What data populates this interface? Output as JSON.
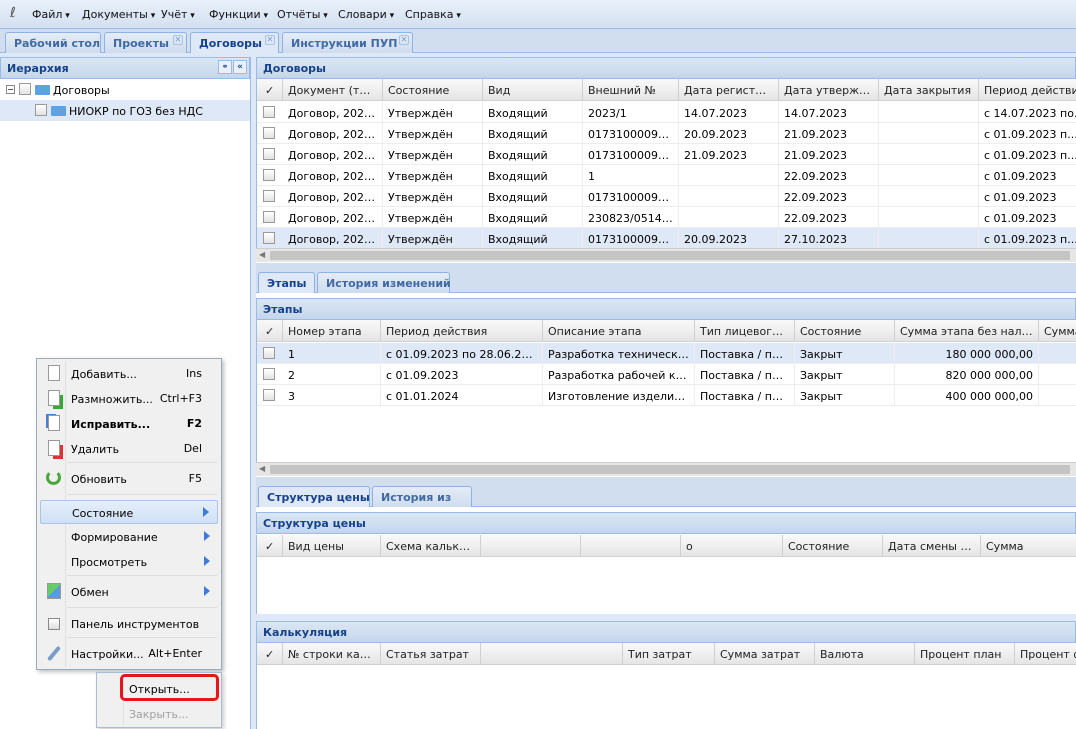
{
  "menubar": {
    "items": [
      "Файл",
      "Документы",
      "Учёт",
      "Функции",
      "Отчёты",
      "Словари",
      "Справка"
    ]
  },
  "tabs": [
    {
      "label": "Рабочий стол",
      "closable": false
    },
    {
      "label": "Проекты",
      "closable": true
    },
    {
      "label": "Договоры",
      "closable": true,
      "active": true
    },
    {
      "label": "Инструкции ПУП",
      "closable": true
    }
  ],
  "hierarchy": {
    "title": "Иерархия",
    "nodes": [
      {
        "label": "Договоры",
        "expanded": true
      },
      {
        "label": "НИОКР по ГОЗ без НДС"
      }
    ]
  },
  "contracts": {
    "title": "Договоры",
    "columns": [
      "Документ (тип, №",
      "Состояние",
      "Вид",
      "Внешний №",
      "Дата регистрации...",
      "Дата утверждения",
      "Дата закрытия",
      "Период действия..."
    ],
    "rows": [
      [
        "Договор, 2023/...",
        "Утверждён",
        "Входящий",
        "2023/1",
        "14.07.2023",
        "14.07.2023",
        "",
        "с 14.07.2023 по..."
      ],
      [
        "Договор, 2023/...",
        "Утверждён",
        "Входящий",
        "017310000922...",
        "20.09.2023",
        "21.09.2023",
        "",
        "с 01.09.2023 п..."
      ],
      [
        "Договор, 2023/...",
        "Утверждён",
        "Входящий",
        "017310000922...",
        "21.09.2023",
        "21.09.2023",
        "",
        "с 01.09.2023 п..."
      ],
      [
        "Договор, 2023/...",
        "Утверждён",
        "Входящий",
        "1",
        "",
        "22.09.2023",
        "",
        "с 01.09.2023"
      ],
      [
        "Договор, 2023/...",
        "Утверждён",
        "Входящий",
        "017310000922...",
        "",
        "22.09.2023",
        "",
        "с 01.09.2023"
      ],
      [
        "Договор, 2023/...",
        "Утверждён",
        "Входящий",
        "230823/0514/...",
        "",
        "22.09.2023",
        "",
        "с 01.09.2023"
      ],
      [
        "Договор, 2023/...",
        "Утверждён",
        "Входящий",
        "017310000922...",
        "20.09.2023",
        "27.10.2023",
        "",
        "с 01.09.2023 п..."
      ]
    ],
    "selected_row": 6
  },
  "stage_tabs": [
    "Этапы",
    "История изменений"
  ],
  "stages": {
    "title": "Этапы",
    "columns": [
      "Номер этапа",
      "Период действия",
      "Описание этапа",
      "Тип лицевого счёт",
      "Состояние",
      "Сумма этапа без налогов",
      "Сумма"
    ],
    "rows": [
      [
        "1",
        "с 01.09.2023 по 28.06.2024",
        "Разработка технического...",
        "Поставка / про...",
        "Закрыт",
        "180 000 000,00",
        ""
      ],
      [
        "2",
        "с 01.09.2023",
        "Разработка рабочей конс...",
        "Поставка / про...",
        "Закрыт",
        "820 000 000,00",
        ""
      ],
      [
        "3",
        "с 01.01.2024",
        "Изготовление изделия и ...",
        "Поставка / про...",
        "Закрыт",
        "400 000 000,00",
        ""
      ]
    ],
    "selected_row": 0
  },
  "price_tabs": [
    "Структура цены",
    "История из"
  ],
  "price": {
    "title": "Структура цены",
    "columns": [
      "Вид цены",
      "Схема калькуляции",
      "",
      "",
      "о",
      "Состояние",
      "Дата смены состояния",
      "Сумма"
    ]
  },
  "calc": {
    "title": "Калькуляция",
    "columns": [
      "№ строки калькуляции",
      "Статья затрат",
      "",
      "Тип затрат",
      "Сумма затрат",
      "Валюта",
      "Процент план",
      "Процент ф"
    ]
  },
  "context_menu": {
    "items": [
      {
        "label": "Добавить...",
        "shortcut": "Ins",
        "icon": "new-document-icon"
      },
      {
        "label": "Размножить...",
        "shortcut": "Ctrl+F3",
        "icon": "copy-document-icon"
      },
      {
        "label": "Исправить...",
        "shortcut": "F2",
        "icon": "edit-document-icon",
        "bold": true
      },
      {
        "label": "Удалить",
        "shortcut": "Del",
        "icon": "delete-document-icon"
      },
      {
        "label": "Обновить",
        "shortcut": "F5",
        "icon": "refresh-icon"
      },
      {
        "label": "Состояние",
        "submenu": true,
        "highlighted": true
      },
      {
        "label": "Формирование",
        "submenu": true
      },
      {
        "label": "Просмотреть",
        "submenu": true
      },
      {
        "label": "Обмен",
        "submenu": true,
        "icon": "exchange-icon"
      },
      {
        "label": "Панель инструментов",
        "icon": "checkbox-icon"
      },
      {
        "label": "Настройки...",
        "shortcut": "Alt+Enter",
        "icon": "wrench-icon"
      }
    ]
  },
  "submenu": {
    "items": [
      {
        "label": "Открыть...",
        "enabled": true,
        "highlighted_box": true
      },
      {
        "label": "Закрыть...",
        "enabled": false
      }
    ]
  },
  "colors": {
    "accent": "#15428b",
    "highlight_box": "#e8141b",
    "selected_row": "#dfe8f6"
  }
}
